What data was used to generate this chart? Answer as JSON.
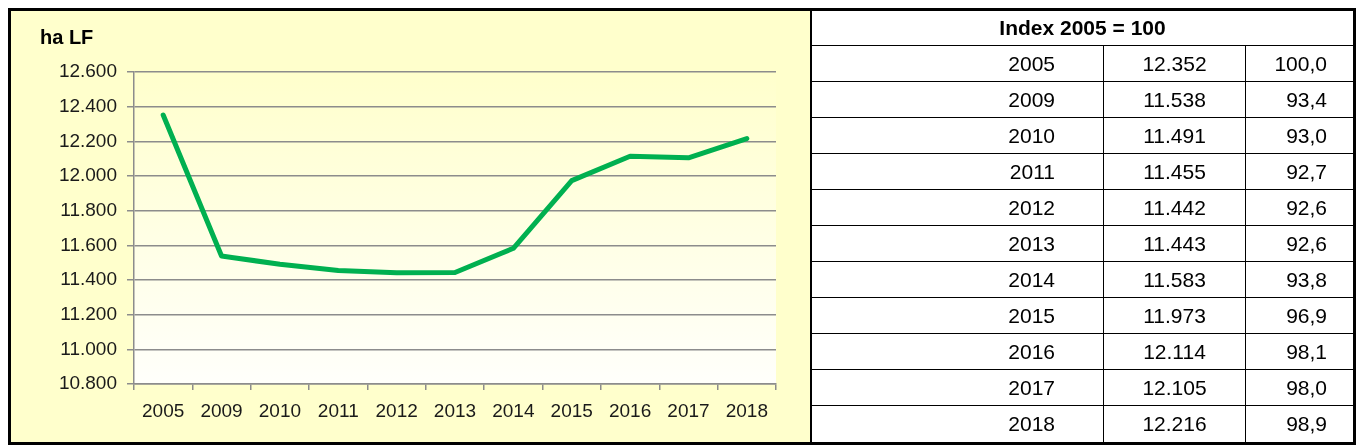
{
  "chart_data": {
    "type": "line",
    "ylabel": "ha LF",
    "categories": [
      "2005",
      "2009",
      "2010",
      "2011",
      "2012",
      "2013",
      "2014",
      "2015",
      "2016",
      "2017",
      "2018"
    ],
    "values": [
      12352,
      11538,
      11491,
      11455,
      11442,
      11443,
      11583,
      11973,
      12114,
      12105,
      12216
    ],
    "color": "#00b050",
    "ylim": [
      10800,
      12600
    ],
    "yticks": [
      {
        "value": 10800,
        "label": "10.800"
      },
      {
        "value": 11000,
        "label": "11.000"
      },
      {
        "value": 11200,
        "label": "11.200"
      },
      {
        "value": 11400,
        "label": "11.400"
      },
      {
        "value": 11600,
        "label": "11.600"
      },
      {
        "value": 11800,
        "label": "11.800"
      },
      {
        "value": 12000,
        "label": "12.000"
      },
      {
        "value": 12200,
        "label": "12.200"
      },
      {
        "value": 12400,
        "label": "12.400"
      },
      {
        "value": 12600,
        "label": "12.600"
      }
    ],
    "grid": "y",
    "marker": "none",
    "annotations": [
      "Index 2005 = 100",
      "12.352",
      "100,0",
      "11.538",
      "93,4",
      "11.491",
      "93,0",
      "11.455",
      "92,7",
      "11.442",
      "92,6",
      "11.443",
      "92,6",
      "11.583",
      "93,8",
      "11.973",
      "96,9",
      "12.114",
      "98,1",
      "12.105",
      "98,0",
      "12.216",
      "98,9"
    ]
  }
}
